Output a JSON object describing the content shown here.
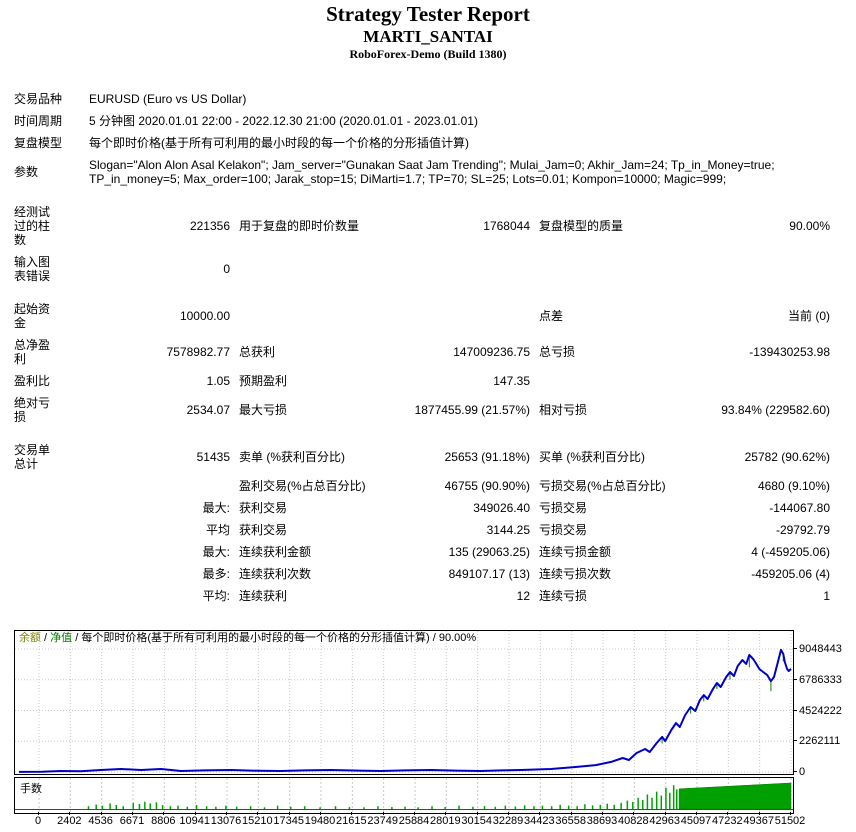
{
  "header": {
    "title": "Strategy Tester Report",
    "subtitle": "MARTI_SANTAI",
    "server": "RoboForex-Demo (Build 1380)"
  },
  "report": {
    "rows": [
      {
        "c1": "交易品种",
        "wide": "EURUSD (Euro vs US Dollar)"
      },
      {
        "c1": "时间周期",
        "wide": "5 分钟图 2020.01.01 22:00 - 2022.12.30 21:00 (2020.01.01 - 2023.01.01)"
      },
      {
        "c1": "复盘模型",
        "wide": "每个即时价格(基于所有可利用的最小时段的每一个价格的分形插值计算)"
      },
      {
        "c1": "参数",
        "wide": "Slogan=\"Alon Alon Asal Kelakon\"; Jam_server=\"Gunakan Saat Jam Trending\"; Mulai_Jam=0; Akhir_Jam=24; Tp_in_Money=true; TP_in_money=5; Max_order=100; Jarak_stop=15; DiMarti=1.7; TP=70; SL=25; Lots=0.01; Kompon=10000; Magic=999;"
      },
      {
        "spacer": true
      },
      {
        "c1": "经测试\n过的柱\n数",
        "c2": "221356",
        "c3": "用于复盘的即时价数量",
        "c4": "1768044",
        "c5": "复盘模型的质量",
        "c6": "90.00%"
      },
      {
        "c1": "输入图\n表错误",
        "c2": "0",
        "c3": "",
        "c4": "",
        "c5": "",
        "c6": ""
      },
      {
        "spacer": true
      },
      {
        "c1": "起始资\n金",
        "c2": "10000.00",
        "c3": "",
        "c4": "",
        "c5": "点差",
        "c6": "当前 (0)"
      },
      {
        "c1": "总净盈\n利",
        "c2": "7578982.77",
        "c3": "总获利",
        "c4": "147009236.75",
        "c5": "总亏损",
        "c6": "-139430253.98"
      },
      {
        "c1": "盈利比",
        "c2": "1.05",
        "c3": "预期盈利",
        "c4": "147.35",
        "c5": "",
        "c6": ""
      },
      {
        "c1": "绝对亏\n损",
        "c2": "2534.07",
        "c3": "最大亏损",
        "c4": "1877455.99 (21.57%)",
        "c5": "相对亏损",
        "c6": "93.84% (229582.60)"
      },
      {
        "spacer": true
      },
      {
        "c1": "交易单\n总计",
        "c2": "51435",
        "c3": "卖单 (%获利百分比)",
        "c4": "25653 (91.18%)",
        "c5": "买单 (%获利百分比)",
        "c6": "25782 (90.62%)"
      },
      {
        "c1": "",
        "c2": "",
        "c3": "盈利交易(%占总百分比)",
        "c4": "46755 (90.90%)",
        "c5": "亏损交易(%占总百分比)",
        "c6": "4680 (9.10%)"
      },
      {
        "c1": "",
        "c2": "最大:",
        "c3": "获利交易",
        "c4": "349026.40",
        "c5": "亏损交易",
        "c6": "-144067.80"
      },
      {
        "c1": "",
        "c2": "平均",
        "c3": "获利交易",
        "c4": "3144.25",
        "c5": "亏损交易",
        "c6": "-29792.79"
      },
      {
        "c1": "",
        "c2": "最大:",
        "c3": "连续获利金额",
        "c4": "135 (29063.25)",
        "c5": "连续亏损金额",
        "c6": "4 (-459205.06)"
      },
      {
        "c1": "",
        "c2": "最多:",
        "c3": "连续获利次数",
        "c4": "849107.17 (13)",
        "c5": "连续亏损次数",
        "c6": "-459205.06 (4)"
      },
      {
        "c1": "",
        "c2": "平均:",
        "c3": "连续获利",
        "c4": "12",
        "c5": "连续亏损",
        "c6": "1"
      }
    ]
  },
  "chart_data": [
    {
      "type": "line",
      "legend": [
        {
          "text": "余额",
          "color": "#808000"
        },
        {
          "text": " / ",
          "color": "#000000"
        },
        {
          "text": "净值",
          "color": "#008000"
        },
        {
          "text": " / 每个即时价格(基于所有可利用的最小时段的每一个价格的分形插值计算) / 90.00%",
          "color": "#000000"
        }
      ],
      "grid": true,
      "legend_position": "top-left",
      "y_ticks": [
        "9048443",
        "6786333",
        "4524222",
        "2262111",
        "0"
      ],
      "x_ticks": [
        "0",
        "2402",
        "4536",
        "6671",
        "8806",
        "10941",
        "13076",
        "15210",
        "17345",
        "19480",
        "21615",
        "23749",
        "25884",
        "28019",
        "30154",
        "32289",
        "34423",
        "36558",
        "38693",
        "40828",
        "42963",
        "45097",
        "47232",
        "49367",
        "51502"
      ],
      "ylim": [
        0,
        9048443
      ],
      "series": [
        {
          "name": "余额",
          "color": "#0000C8",
          "points": [
            [
              0.0,
              10000
            ],
            [
              0.03,
              15000
            ],
            [
              0.054,
              70000
            ],
            [
              0.08,
              60000
            ],
            [
              0.106,
              150000
            ],
            [
              0.132,
              220000
            ],
            [
              0.158,
              150000
            ],
            [
              0.184,
              220000
            ],
            [
              0.21,
              70000
            ],
            [
              0.24,
              120000
            ],
            [
              0.275,
              150000
            ],
            [
              0.31,
              90000
            ],
            [
              0.339,
              70000
            ],
            [
              0.37,
              120000
            ],
            [
              0.404,
              150000
            ],
            [
              0.44,
              100000
            ],
            [
              0.469,
              70000
            ],
            [
              0.5,
              120000
            ],
            [
              0.534,
              150000
            ],
            [
              0.565,
              100000
            ],
            [
              0.598,
              70000
            ],
            [
              0.625,
              120000
            ],
            [
              0.65,
              150000
            ],
            [
              0.689,
              220000
            ],
            [
              0.721,
              370000
            ],
            [
              0.747,
              510000
            ],
            [
              0.767,
              740000
            ],
            [
              0.782,
              1030000
            ],
            [
              0.79,
              880000
            ],
            [
              0.8,
              1400000
            ],
            [
              0.811,
              1690000
            ],
            [
              0.817,
              1470000
            ],
            [
              0.826,
              2130000
            ],
            [
              0.833,
              2580000
            ],
            [
              0.837,
              2280000
            ],
            [
              0.845,
              3090000
            ],
            [
              0.851,
              3600000
            ],
            [
              0.856,
              3310000
            ],
            [
              0.863,
              4190000
            ],
            [
              0.87,
              4780000
            ],
            [
              0.876,
              4490000
            ],
            [
              0.882,
              5300000
            ],
            [
              0.887,
              5660000
            ],
            [
              0.892,
              5370000
            ],
            [
              0.899,
              6110000
            ],
            [
              0.904,
              6550000
            ],
            [
              0.909,
              6250000
            ],
            [
              0.916,
              6990000
            ],
            [
              0.921,
              7360000
            ],
            [
              0.926,
              7060000
            ],
            [
              0.931,
              7800000
            ],
            [
              0.937,
              8240000
            ],
            [
              0.942,
              7950000
            ],
            [
              0.946,
              8610000
            ],
            [
              0.951,
              8310000
            ],
            [
              0.955,
              7950000
            ],
            [
              0.959,
              7580000
            ],
            [
              0.964,
              7360000
            ],
            [
              0.969,
              7140000
            ],
            [
              0.974,
              6690000
            ],
            [
              0.978,
              6990000
            ],
            [
              0.983,
              8090000
            ],
            [
              0.987,
              8980000
            ],
            [
              0.99,
              8680000
            ],
            [
              0.992,
              8090000
            ],
            [
              0.995,
              7580000
            ],
            [
              0.997,
              7430000
            ],
            [
              1.0,
              7590000
            ]
          ]
        },
        {
          "name": "净值",
          "color": "#008000",
          "drawdown_spikes": [
            [
              0.833,
              2580000,
              2100000
            ],
            [
              0.87,
              4780000,
              4300000
            ],
            [
              0.887,
              5660000,
              5200000
            ],
            [
              0.904,
              6550000,
              6100000
            ],
            [
              0.921,
              7360000,
              6800000
            ],
            [
              0.946,
              8610000,
              7700000
            ],
            [
              0.974,
              6690000,
              5950000
            ],
            [
              0.99,
              8680000,
              8150000
            ]
          ]
        }
      ]
    },
    {
      "type": "bar",
      "name": "手数",
      "color": "#00A000",
      "edge_color": "#007800",
      "bars": [
        [
          0.09,
          0.1
        ],
        [
          0.1,
          0.16
        ],
        [
          0.108,
          0.12
        ],
        [
          0.118,
          0.2
        ],
        [
          0.126,
          0.14
        ],
        [
          0.135,
          0.1
        ],
        [
          0.148,
          0.22
        ],
        [
          0.156,
          0.18
        ],
        [
          0.163,
          0.26
        ],
        [
          0.17,
          0.2
        ],
        [
          0.178,
          0.24
        ],
        [
          0.186,
          0.14
        ],
        [
          0.196,
          0.1
        ],
        [
          0.206,
          0.12
        ],
        [
          0.218,
          0.08
        ],
        [
          0.23,
          0.14
        ],
        [
          0.243,
          0.1
        ],
        [
          0.255,
          0.08
        ],
        [
          0.268,
          0.12
        ],
        [
          0.282,
          0.08
        ],
        [
          0.3,
          0.1
        ],
        [
          0.318,
          0.06
        ],
        [
          0.335,
          0.12
        ],
        [
          0.352,
          0.08
        ],
        [
          0.37,
          0.1
        ],
        [
          0.39,
          0.06
        ],
        [
          0.41,
          0.1
        ],
        [
          0.428,
          0.07
        ],
        [
          0.447,
          0.06
        ],
        [
          0.465,
          0.1
        ],
        [
          0.483,
          0.07
        ],
        [
          0.5,
          0.08
        ],
        [
          0.517,
          0.06
        ],
        [
          0.535,
          0.1
        ],
        [
          0.552,
          0.07
        ],
        [
          0.57,
          0.12
        ],
        [
          0.588,
          0.08
        ],
        [
          0.603,
          0.1
        ],
        [
          0.617,
          0.08
        ],
        [
          0.63,
          0.12
        ],
        [
          0.643,
          0.09
        ],
        [
          0.655,
          0.13
        ],
        [
          0.667,
          0.1
        ],
        [
          0.678,
          0.12
        ],
        [
          0.69,
          0.1
        ],
        [
          0.701,
          0.15
        ],
        [
          0.712,
          0.12
        ],
        [
          0.723,
          0.1
        ],
        [
          0.733,
          0.17
        ],
        [
          0.743,
          0.13
        ],
        [
          0.753,
          0.15
        ],
        [
          0.762,
          0.19
        ],
        [
          0.771,
          0.15
        ],
        [
          0.78,
          0.22
        ],
        [
          0.788,
          0.3
        ],
        [
          0.795,
          0.25
        ],
        [
          0.802,
          0.4
        ],
        [
          0.808,
          0.32
        ],
        [
          0.814,
          0.52
        ],
        [
          0.82,
          0.4
        ],
        [
          0.826,
          0.62
        ],
        [
          0.832,
          0.48
        ],
        [
          0.838,
          0.75
        ],
        [
          0.843,
          0.58
        ],
        [
          0.848,
          0.85
        ],
        [
          0.852,
          0.7
        ]
      ],
      "solid_region": {
        "from": 0.855,
        "to": 1.0,
        "h_from": 0.72,
        "h_to": 0.93
      }
    }
  ]
}
